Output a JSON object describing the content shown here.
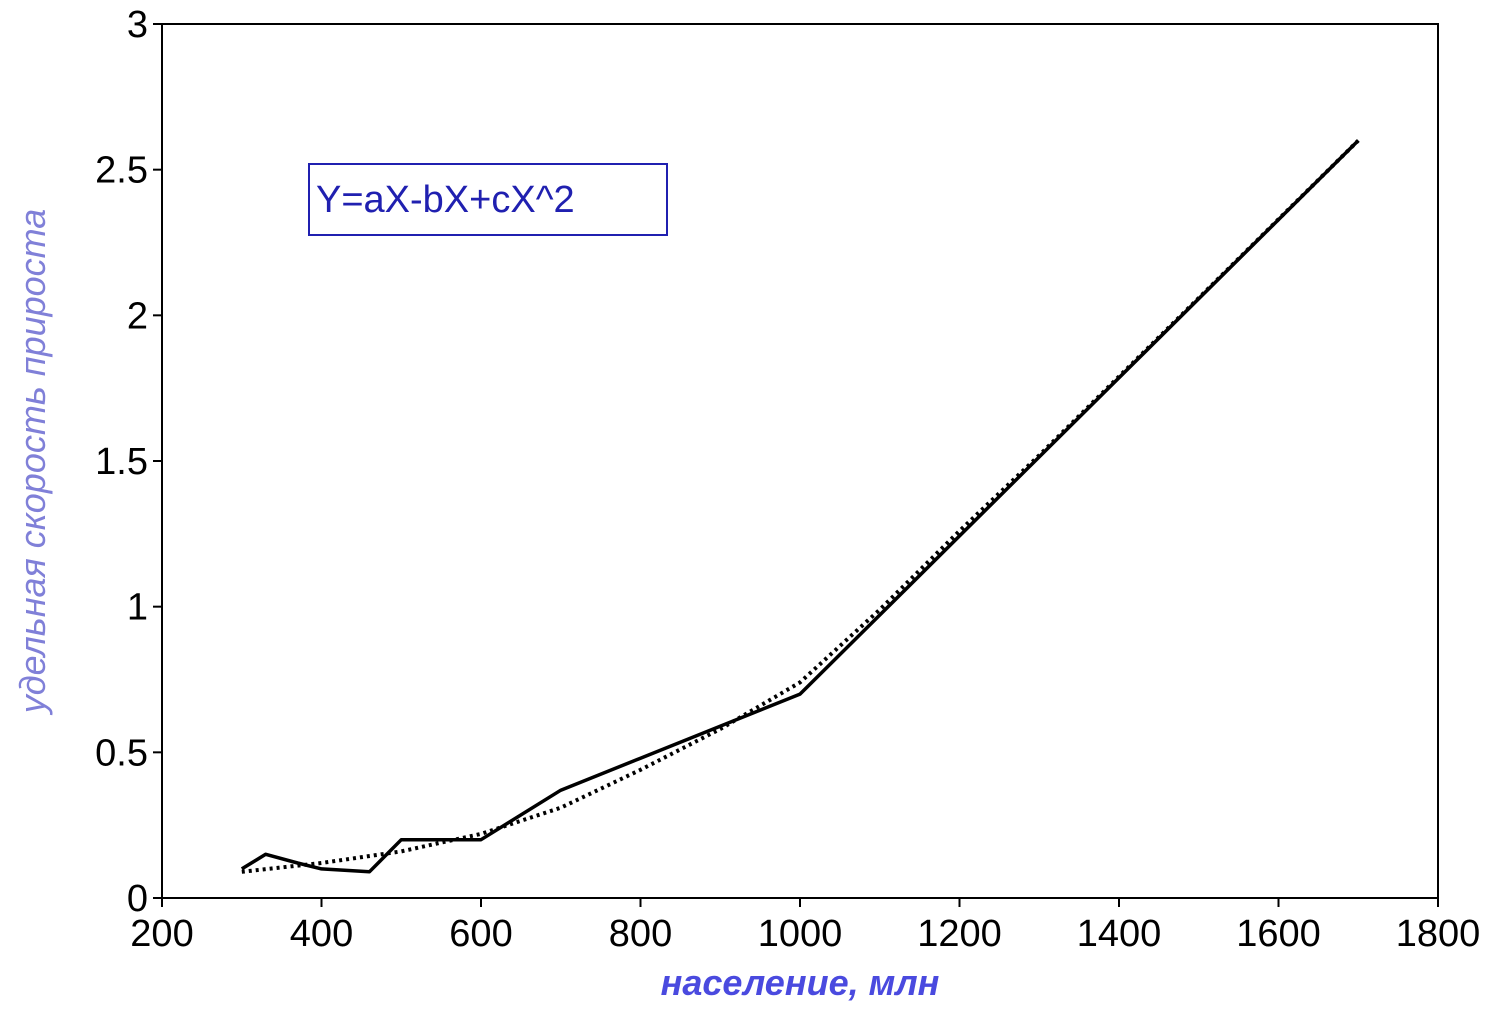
{
  "chart_data": {
    "type": "line",
    "title": "",
    "xlabel": "население, млн",
    "ylabel": "удельная скорость прироста",
    "xlim": [
      200,
      1800
    ],
    "ylim": [
      0,
      3
    ],
    "x_ticks": [
      200,
      400,
      600,
      800,
      1000,
      1200,
      1400,
      1600,
      1800
    ],
    "x_tick_labels": [
      "200",
      "400",
      "600",
      "800",
      "1000",
      "1200",
      "1400",
      "1600",
      "1800"
    ],
    "y_ticks": [
      0,
      0.5,
      1,
      1.5,
      2,
      2.5,
      3
    ],
    "y_tick_labels": [
      "0",
      "0.5",
      "1",
      "1.5",
      "2",
      "2.5",
      "3"
    ],
    "grid": false,
    "annotation": "Y=aX-bX+cX^2",
    "series": [
      {
        "style": "solid",
        "x": [
          300,
          330,
          370,
          400,
          460,
          500,
          600,
          700,
          800,
          1000,
          1700
        ],
        "y": [
          0.1,
          0.15,
          0.12,
          0.1,
          0.09,
          0.2,
          0.2,
          0.37,
          0.48,
          0.7,
          2.6
        ]
      },
      {
        "style": "dotted",
        "x": [
          300,
          400,
          500,
          600,
          700,
          800,
          900,
          1000,
          1100,
          1200,
          1300,
          1400,
          1500,
          1600,
          1700
        ],
        "y": [
          0.09,
          0.12,
          0.16,
          0.22,
          0.31,
          0.44,
          0.58,
          0.74,
          0.99,
          1.26,
          1.52,
          1.79,
          2.06,
          2.33,
          2.6
        ]
      }
    ],
    "colors": {
      "axis": "#000000",
      "xlabel": "#4a4adf",
      "ylabel": "#8080d8",
      "annotation_text": "#2020b0",
      "annotation_border": "#2020b0",
      "series": "#000000"
    }
  }
}
